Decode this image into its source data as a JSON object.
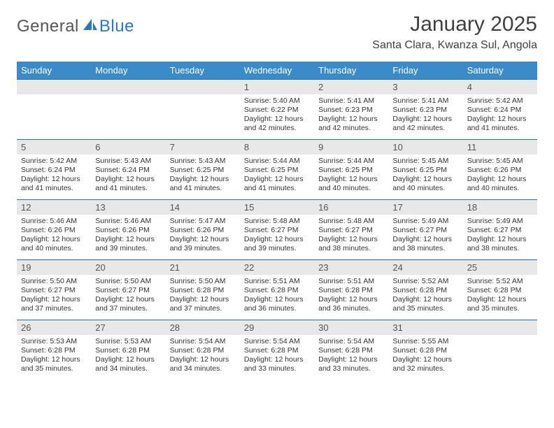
{
  "logo": {
    "general": "General",
    "blue": "Blue",
    "icon_color": "#2a7ab9"
  },
  "title": "January 2025",
  "location": "Santa Clara, Kwanza Sul, Angola",
  "header_bg": "#3b8bc8",
  "header_fg": "#ffffff",
  "daynum_bg": "#e8e8e8",
  "border_color": "#2a6fa3",
  "days": [
    "Sunday",
    "Monday",
    "Tuesday",
    "Wednesday",
    "Thursday",
    "Friday",
    "Saturday"
  ],
  "weeks": [
    [
      {
        "n": "",
        "sr": "",
        "ss": "",
        "dl": ""
      },
      {
        "n": "",
        "sr": "",
        "ss": "",
        "dl": ""
      },
      {
        "n": "",
        "sr": "",
        "ss": "",
        "dl": ""
      },
      {
        "n": "1",
        "sr": "5:40 AM",
        "ss": "6:22 PM",
        "dl": "12 hours and 42 minutes."
      },
      {
        "n": "2",
        "sr": "5:41 AM",
        "ss": "6:23 PM",
        "dl": "12 hours and 42 minutes."
      },
      {
        "n": "3",
        "sr": "5:41 AM",
        "ss": "6:23 PM",
        "dl": "12 hours and 42 minutes."
      },
      {
        "n": "4",
        "sr": "5:42 AM",
        "ss": "6:24 PM",
        "dl": "12 hours and 41 minutes."
      }
    ],
    [
      {
        "n": "5",
        "sr": "5:42 AM",
        "ss": "6:24 PM",
        "dl": "12 hours and 41 minutes."
      },
      {
        "n": "6",
        "sr": "5:43 AM",
        "ss": "6:24 PM",
        "dl": "12 hours and 41 minutes."
      },
      {
        "n": "7",
        "sr": "5:43 AM",
        "ss": "6:25 PM",
        "dl": "12 hours and 41 minutes."
      },
      {
        "n": "8",
        "sr": "5:44 AM",
        "ss": "6:25 PM",
        "dl": "12 hours and 41 minutes."
      },
      {
        "n": "9",
        "sr": "5:44 AM",
        "ss": "6:25 PM",
        "dl": "12 hours and 40 minutes."
      },
      {
        "n": "10",
        "sr": "5:45 AM",
        "ss": "6:25 PM",
        "dl": "12 hours and 40 minutes."
      },
      {
        "n": "11",
        "sr": "5:45 AM",
        "ss": "6:26 PM",
        "dl": "12 hours and 40 minutes."
      }
    ],
    [
      {
        "n": "12",
        "sr": "5:46 AM",
        "ss": "6:26 PM",
        "dl": "12 hours and 40 minutes."
      },
      {
        "n": "13",
        "sr": "5:46 AM",
        "ss": "6:26 PM",
        "dl": "12 hours and 39 minutes."
      },
      {
        "n": "14",
        "sr": "5:47 AM",
        "ss": "6:26 PM",
        "dl": "12 hours and 39 minutes."
      },
      {
        "n": "15",
        "sr": "5:48 AM",
        "ss": "6:27 PM",
        "dl": "12 hours and 39 minutes."
      },
      {
        "n": "16",
        "sr": "5:48 AM",
        "ss": "6:27 PM",
        "dl": "12 hours and 38 minutes."
      },
      {
        "n": "17",
        "sr": "5:49 AM",
        "ss": "6:27 PM",
        "dl": "12 hours and 38 minutes."
      },
      {
        "n": "18",
        "sr": "5:49 AM",
        "ss": "6:27 PM",
        "dl": "12 hours and 38 minutes."
      }
    ],
    [
      {
        "n": "19",
        "sr": "5:50 AM",
        "ss": "6:27 PM",
        "dl": "12 hours and 37 minutes."
      },
      {
        "n": "20",
        "sr": "5:50 AM",
        "ss": "6:27 PM",
        "dl": "12 hours and 37 minutes."
      },
      {
        "n": "21",
        "sr": "5:50 AM",
        "ss": "6:28 PM",
        "dl": "12 hours and 37 minutes."
      },
      {
        "n": "22",
        "sr": "5:51 AM",
        "ss": "6:28 PM",
        "dl": "12 hours and 36 minutes."
      },
      {
        "n": "23",
        "sr": "5:51 AM",
        "ss": "6:28 PM",
        "dl": "12 hours and 36 minutes."
      },
      {
        "n": "24",
        "sr": "5:52 AM",
        "ss": "6:28 PM",
        "dl": "12 hours and 35 minutes."
      },
      {
        "n": "25",
        "sr": "5:52 AM",
        "ss": "6:28 PM",
        "dl": "12 hours and 35 minutes."
      }
    ],
    [
      {
        "n": "26",
        "sr": "5:53 AM",
        "ss": "6:28 PM",
        "dl": "12 hours and 35 minutes."
      },
      {
        "n": "27",
        "sr": "5:53 AM",
        "ss": "6:28 PM",
        "dl": "12 hours and 34 minutes."
      },
      {
        "n": "28",
        "sr": "5:54 AM",
        "ss": "6:28 PM",
        "dl": "12 hours and 34 minutes."
      },
      {
        "n": "29",
        "sr": "5:54 AM",
        "ss": "6:28 PM",
        "dl": "12 hours and 33 minutes."
      },
      {
        "n": "30",
        "sr": "5:54 AM",
        "ss": "6:28 PM",
        "dl": "12 hours and 33 minutes."
      },
      {
        "n": "31",
        "sr": "5:55 AM",
        "ss": "6:28 PM",
        "dl": "12 hours and 32 minutes."
      },
      {
        "n": "",
        "sr": "",
        "ss": "",
        "dl": ""
      }
    ]
  ],
  "labels": {
    "sunrise": "Sunrise:",
    "sunset": "Sunset:",
    "daylight": "Daylight:"
  }
}
